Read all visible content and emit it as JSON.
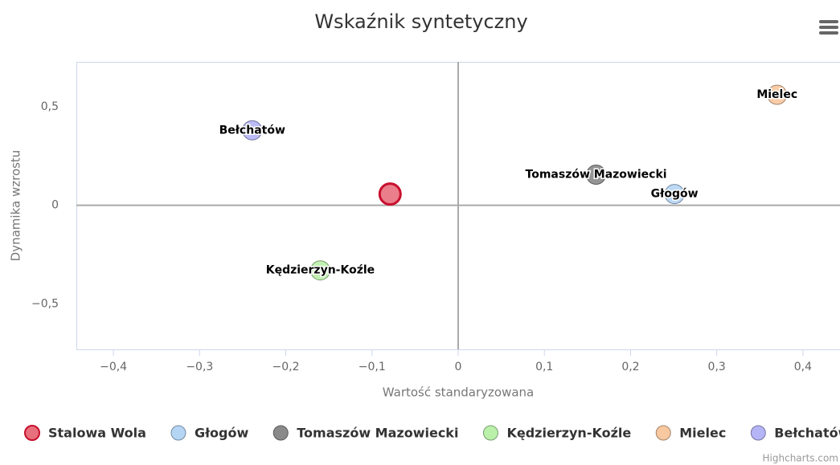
{
  "chart_data": {
    "type": "scatter",
    "title": "Wskaźnik syntetyczny",
    "xlabel": "Wartość standaryzowana",
    "ylabel": "Dynamika wzrostu",
    "xlim": [
      -0.443,
      0.443
    ],
    "ylim": [
      -0.73,
      0.727
    ],
    "xticks": [
      {
        "value": -0.4,
        "label": "−0,4"
      },
      {
        "value": -0.3,
        "label": "−0,3"
      },
      {
        "value": -0.2,
        "label": "−0,2"
      },
      {
        "value": -0.1,
        "label": "−0,1"
      },
      0,
      {
        "value": 0.1,
        "label": "0,1"
      },
      {
        "value": 0.2,
        "label": "0,2"
      },
      {
        "value": 0.3,
        "label": "0,3"
      },
      {
        "value": 0.4,
        "label": "0,4"
      }
    ],
    "yticks": [
      {
        "value": 0.5,
        "label": "0,5"
      },
      0,
      {
        "value": -0.5,
        "label": "−0,5"
      }
    ],
    "grid": false,
    "legend": "bottom",
    "series": [
      {
        "name": "Stalowa Wola",
        "color": "#e8707d",
        "x": [
          -0.079
        ],
        "values": [
          0.057
        ]
      },
      {
        "name": "Głogów",
        "color": "#b5d5f5",
        "x": [
          0.251
        ],
        "values": [
          0.057
        ]
      },
      {
        "name": "Tomaszów Mazowiecki",
        "color": "#8a8a8a",
        "x": [
          0.16
        ],
        "values": [
          0.155
        ]
      },
      {
        "name": "Kędzierzyn-Koźle",
        "color": "#baf0aa",
        "x": [
          -0.16
        ],
        "values": [
          -0.33
        ]
      },
      {
        "name": "Mielec",
        "color": "#f8c8a0",
        "x": [
          0.37
        ],
        "values": [
          0.56
        ]
      },
      {
        "name": "Bełchatów",
        "color": "#b4b4f6",
        "x": [
          -0.239
        ],
        "values": [
          0.38
        ]
      }
    ],
    "credits": "Highcharts.com"
  }
}
